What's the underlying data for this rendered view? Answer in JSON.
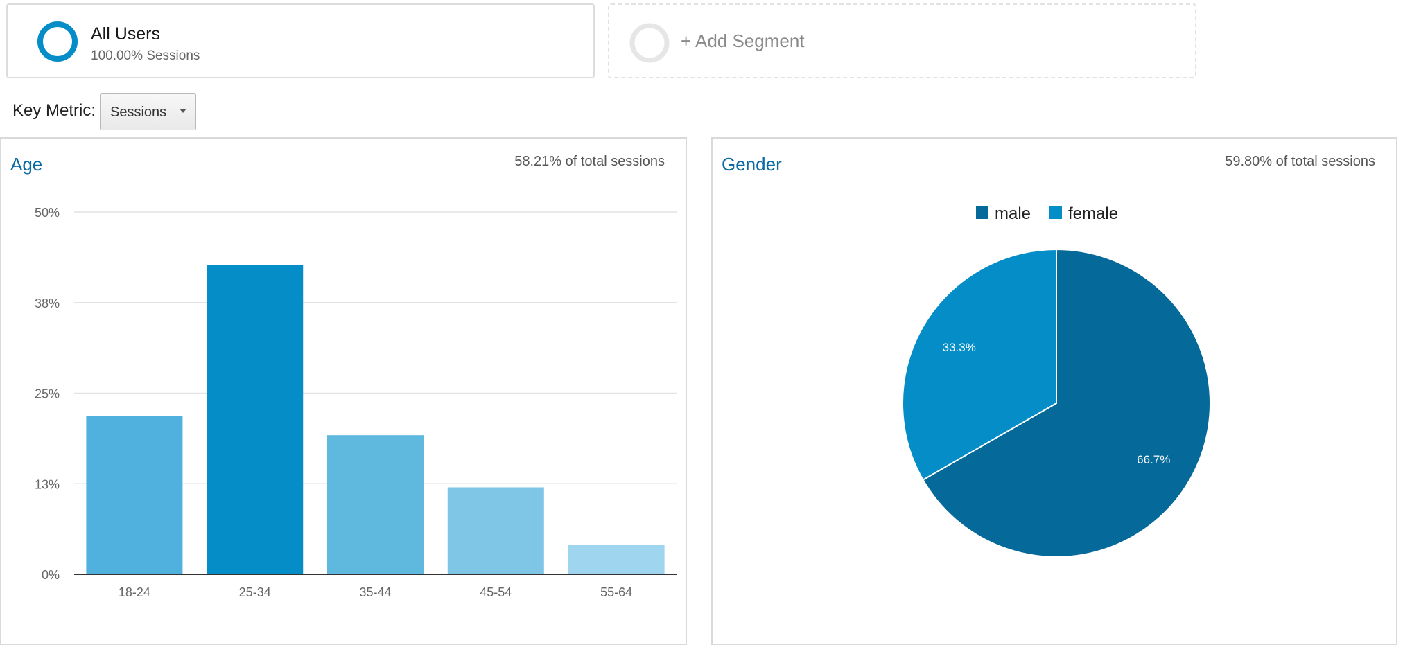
{
  "segments": {
    "all_users": {
      "name": "All Users",
      "sub": "100.00% Sessions",
      "ring_color": "#058dc7"
    },
    "add_segment": {
      "label": "+ Add Segment"
    }
  },
  "key_metric": {
    "label": "Key Metric:",
    "selected": "Sessions"
  },
  "age_panel": {
    "title": "Age",
    "pct_total": "58.21% of total sessions"
  },
  "gender_panel": {
    "title": "Gender",
    "pct_total": "59.80% of total sessions"
  },
  "chart_data": [
    {
      "type": "bar",
      "title": "Age",
      "categories": [
        "18-24",
        "25-34",
        "35-44",
        "45-54",
        "55-64"
      ],
      "values": [
        21.8,
        42.7,
        19.2,
        12.0,
        4.1
      ],
      "unit": "%",
      "ylim": [
        0,
        50
      ],
      "y_ticks": [
        {
          "value": 0,
          "label": "0%"
        },
        {
          "value": 12.5,
          "label": "13%"
        },
        {
          "value": 25,
          "label": "25%"
        },
        {
          "value": 37.5,
          "label": "38%"
        },
        {
          "value": 50,
          "label": "50%"
        }
      ],
      "grid": true,
      "colors": [
        "#50b0de",
        "#058dc7",
        "#5fb9df",
        "#7fc6e6",
        "#9fd5ee"
      ]
    },
    {
      "type": "pie",
      "title": "Gender",
      "legend_position": "top",
      "slices": [
        {
          "label": "male",
          "value": 66.7,
          "display": "66.7%",
          "color": "#056a99"
        },
        {
          "label": "female",
          "value": 33.3,
          "display": "33.3%",
          "color": "#058dc7"
        }
      ]
    }
  ]
}
